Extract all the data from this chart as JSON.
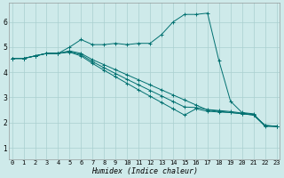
{
  "title": "",
  "xlabel": "Humidex (Indice chaleur)",
  "ylabel": "",
  "bg_color": "#ceeaea",
  "line_color": "#007070",
  "grid_color": "#aacfcf",
  "x_ticks": [
    0,
    1,
    2,
    3,
    4,
    5,
    6,
    7,
    8,
    9,
    10,
    11,
    12,
    13,
    14,
    15,
    16,
    17,
    18,
    19,
    20,
    21,
    22,
    23
  ],
  "y_ticks": [
    1,
    2,
    3,
    4,
    5,
    6
  ],
  "xlim": [
    -0.3,
    23.3
  ],
  "ylim": [
    0.55,
    6.75
  ],
  "series": [
    {
      "x": [
        0,
        1,
        2,
        3,
        4,
        5,
        6,
        7,
        8,
        9,
        10,
        11,
        12,
        13,
        14,
        15,
        16,
        17,
        18,
        19,
        20,
        21,
        22,
        23
      ],
      "y": [
        4.55,
        4.55,
        4.65,
        4.75,
        4.75,
        5.0,
        5.3,
        5.1,
        5.1,
        5.15,
        5.1,
        5.15,
        5.15,
        5.5,
        6.0,
        6.3,
        6.3,
        6.35,
        4.45,
        2.85,
        2.4,
        2.35,
        1.85,
        1.85
      ]
    },
    {
      "x": [
        0,
        1,
        2,
        3,
        4,
        5,
        6,
        7,
        8,
        9,
        10,
        11,
        12,
        13,
        14,
        15,
        16,
        17,
        18,
        19,
        20,
        21,
        22,
        23
      ],
      "y": [
        4.55,
        4.55,
        4.65,
        4.75,
        4.75,
        4.85,
        4.75,
        4.5,
        4.3,
        4.1,
        3.9,
        3.7,
        3.5,
        3.3,
        3.1,
        2.9,
        2.7,
        2.5,
        2.45,
        2.4,
        2.35,
        2.3,
        1.9,
        1.85
      ]
    },
    {
      "x": [
        0,
        1,
        2,
        3,
        4,
        5,
        6,
        7,
        8,
        9,
        10,
        11,
        12,
        13,
        14,
        15,
        16,
        17,
        18,
        19,
        20,
        21,
        22,
        23
      ],
      "y": [
        4.55,
        4.55,
        4.65,
        4.75,
        4.75,
        4.82,
        4.7,
        4.42,
        4.18,
        3.95,
        3.72,
        3.5,
        3.28,
        3.06,
        2.84,
        2.62,
        2.6,
        2.52,
        2.48,
        2.44,
        2.38,
        2.32,
        1.88,
        1.85
      ]
    },
    {
      "x": [
        0,
        1,
        2,
        3,
        4,
        5,
        6,
        7,
        8,
        9,
        10,
        11,
        12,
        13,
        14,
        15,
        16,
        17,
        18,
        19,
        20,
        21,
        22,
        23
      ],
      "y": [
        4.55,
        4.55,
        4.65,
        4.75,
        4.75,
        4.8,
        4.65,
        4.35,
        4.08,
        3.82,
        3.56,
        3.3,
        3.05,
        2.8,
        2.55,
        2.3,
        2.55,
        2.45,
        2.42,
        2.4,
        2.36,
        2.3,
        1.87,
        1.85
      ]
    }
  ],
  "tick_fontsize": 5,
  "xlabel_fontsize": 6,
  "marker_size": 2.5,
  "linewidth": 0.7
}
